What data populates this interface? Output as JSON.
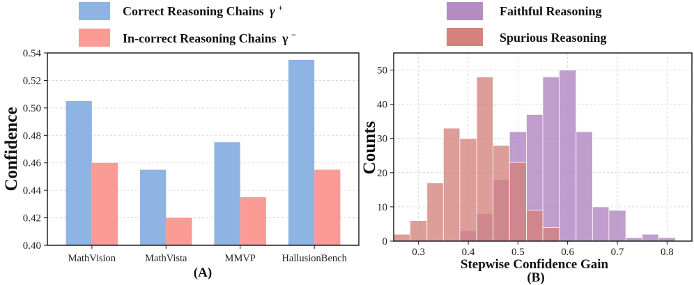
{
  "chart_data": [
    {
      "type": "bar",
      "panel_label": "(A)",
      "ylabel": "Confidence",
      "xlabel": "",
      "ylim": [
        0.4,
        0.54
      ],
      "yticks": [
        "0.40",
        "0.42",
        "0.44",
        "0.46",
        "0.48",
        "0.50",
        "0.52",
        "0.54"
      ],
      "categories": [
        "MathVision",
        "MathVista",
        "MMVP",
        "HallusionBench"
      ],
      "legend_position": "top (above plot)",
      "series": [
        {
          "name": "Correct Reasoning Chains",
          "symbol": "γ",
          "sup": "+",
          "color": "#8eb4e3",
          "values": [
            0.505,
            0.455,
            0.475,
            0.535
          ]
        },
        {
          "name": "In-correct Reasoning Chains",
          "symbol": "γ",
          "sup": "−",
          "color": "#fa9b96",
          "values": [
            0.46,
            0.42,
            0.435,
            0.455
          ]
        }
      ]
    },
    {
      "type": "histogram",
      "panel_label": "(B)",
      "xlabel": "Stepwise Confidence Gain",
      "ylabel": "Counts",
      "xlim": [
        0.25,
        0.85
      ],
      "ylim": [
        0,
        55
      ],
      "xticks": [
        "0.3",
        "0.4",
        "0.5",
        "0.6",
        "0.7",
        "0.8"
      ],
      "yticks": [
        "0",
        "10",
        "20",
        "30",
        "40",
        "50"
      ],
      "bin_edges": [
        0.25,
        0.283,
        0.317,
        0.35,
        0.383,
        0.417,
        0.45,
        0.483,
        0.517,
        0.55,
        0.583,
        0.617,
        0.65,
        0.683,
        0.717,
        0.75,
        0.783,
        0.817,
        0.85
      ],
      "legend_position": "top (above plot)",
      "series": [
        {
          "name": "Faithful Reasoning",
          "color": "#b48cc3",
          "counts": [
            0,
            0,
            0,
            0,
            3,
            8,
            18,
            32,
            37,
            48,
            50,
            32,
            10,
            9,
            1,
            2,
            1,
            0
          ]
        },
        {
          "name": "Spurious Reasoning",
          "color": "#d4827b",
          "counts": [
            2,
            6,
            17,
            33,
            30,
            48,
            28,
            23,
            9,
            4,
            0,
            0,
            0,
            0,
            0,
            0,
            0,
            0
          ]
        }
      ]
    }
  ]
}
